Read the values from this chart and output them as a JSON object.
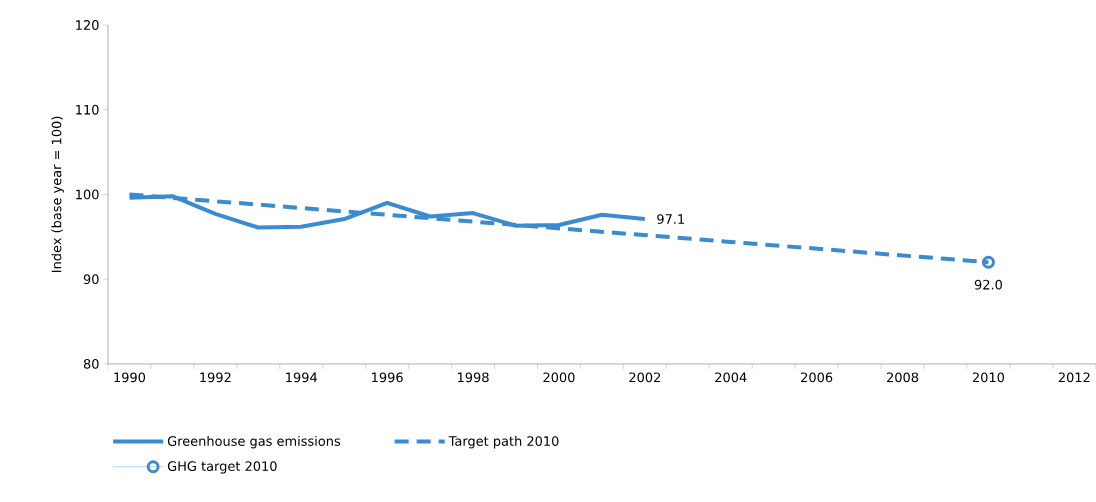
{
  "chart_data": {
    "type": "line",
    "ylabel": "Index (base year = 100)",
    "categories": [
      "1990",
      null,
      "1992",
      null,
      "1994",
      null,
      "1996",
      null,
      "1998",
      null,
      "2000",
      null,
      "2002",
      null,
      "2004",
      null,
      "2006",
      null,
      "2008",
      null,
      "2010",
      null,
      "2012"
    ],
    "ylim": [
      80,
      120
    ],
    "yticks": [
      80,
      90,
      100,
      110,
      120
    ],
    "grid": false,
    "legend": "bottom",
    "series": [
      {
        "name": "Greenhouse gas emissions",
        "type": "line",
        "line_style": "solid",
        "marker": "none",
        "color": "#3a8bd0",
        "values": [
          99.6,
          99.8,
          97.7,
          96.1,
          96.2,
          97.1,
          99.0,
          97.4,
          97.8,
          96.3,
          96.4,
          97.6,
          97.1,
          null,
          null,
          null,
          null,
          null,
          null,
          null,
          null,
          null,
          null
        ],
        "value_labels": [
          null,
          null,
          null,
          null,
          null,
          null,
          null,
          null,
          null,
          null,
          null,
          null,
          "97.1",
          null,
          null,
          null,
          null,
          null,
          null,
          null,
          null,
          null,
          null
        ]
      },
      {
        "name": "Target path 2010",
        "type": "line",
        "line_style": "dashed",
        "marker": "none",
        "color": "#3a8bd0",
        "values": [
          100.0,
          99.6,
          99.2,
          98.8,
          98.4,
          98.0,
          97.6,
          97.2,
          96.8,
          96.4,
          96.0,
          95.6,
          95.2,
          94.8,
          94.4,
          94.0,
          93.6,
          93.2,
          92.8,
          92.4,
          92.0,
          null,
          null
        ]
      },
      {
        "name": "GHG target 2010",
        "type": "scatter",
        "marker": "circle",
        "color": "#3a8bd0",
        "values": [
          null,
          null,
          null,
          null,
          null,
          null,
          null,
          null,
          null,
          null,
          null,
          null,
          null,
          null,
          null,
          null,
          null,
          null,
          null,
          null,
          92.0,
          null,
          null
        ],
        "value_labels": [
          null,
          null,
          null,
          null,
          null,
          null,
          null,
          null,
          null,
          null,
          null,
          null,
          null,
          null,
          null,
          null,
          null,
          null,
          null,
          null,
          "92.0",
          null,
          null
        ]
      }
    ]
  }
}
